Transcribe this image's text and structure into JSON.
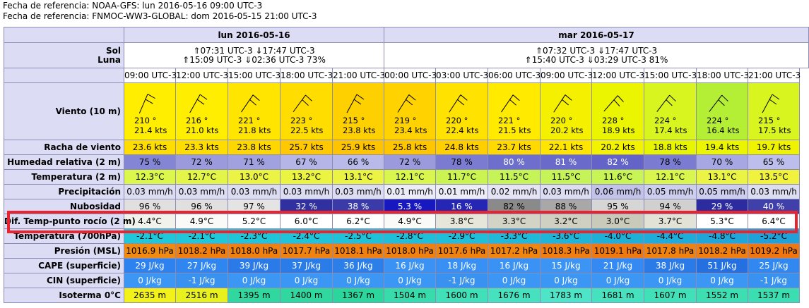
{
  "ref_lines": [
    "Fecha de referencia: NOAA-GFS: lun 2016-05-16 09:00 UTC-3",
    "Fecha de referencia: FNMOC-WW3-GLOBAL: dom 2016-05-15 21:00 UTC-3"
  ],
  "days": [
    {
      "label": "lun 2016-05-16",
      "span": 5,
      "sun": "⇑07:31 UTC-3 ⇓17:47 UTC-3",
      "moon": "⇑15:09 UTC-3 ⇓02:36 UTC-3  73%"
    },
    {
      "label": "mar 2016-05-17",
      "span": 9,
      "sun": "⇑07:32 UTC-3 ⇓17:47 UTC-3",
      "moon": "⇑15:40 UTC-3 ⇓03:29 UTC-3  81%"
    }
  ],
  "labels": {
    "sol": "Sol",
    "luna": "Luna"
  },
  "hours": [
    "09:00 UTC-3",
    "12:00 UTC-3",
    "15:00 UTC-3",
    "18:00 UTC-3",
    "21:00 UTC-3",
    "00:00 UTC-3",
    "03:00 UTC-3",
    "06:00 UTC-3",
    "09:00 UTC-3",
    "12:00 UTC-3",
    "15:00 UTC-3",
    "18:00 UTC-3",
    "21:00 UTC-3"
  ],
  "wind": {
    "label": "Viento (10 m)",
    "dirs": [
      "210 °",
      "216 °",
      "221 °",
      "223 °",
      "215 °",
      "219 °",
      "220 °",
      "221 °",
      "220 °",
      "228 °",
      "224 °",
      "224 °",
      "215 °"
    ],
    "speeds": [
      "21.4  kts",
      "21.0  kts",
      "21.8  kts",
      "22.5  kts",
      "23.8  kts",
      "23.4  kts",
      "22.4  kts",
      "21.5  kts",
      "20.2  kts",
      "18.9  kts",
      "17.4  kts",
      "16.4  kts",
      "17.5  kts"
    ],
    "colors": [
      "#ffee00",
      "#ffee00",
      "#ffe500",
      "#ffdd00",
      "#ffd000",
      "#ffd200",
      "#ffe200",
      "#ffea00",
      "#f5f000",
      "#ecf500",
      "#d8f520",
      "#b5ef35",
      "#d8f520"
    ]
  },
  "rows": [
    {
      "label": "Racha de viento",
      "values": [
        "23.6  kts",
        "23.3  kts",
        "23.8  kts",
        "25.7  kts",
        "25.9  kts",
        "25.8  kts",
        "24.8  kts",
        "23.7  kts",
        "22.1  kts",
        "20.2  kts",
        "18.8  kts",
        "19.4  kts",
        "19.7  kts"
      ],
      "colors": [
        "#ffdd00",
        "#ffdd00",
        "#ffd700",
        "#ffc800",
        "#ffc400",
        "#ffc600",
        "#ffcf00",
        "#ffd900",
        "#ffe500",
        "#f3f200",
        "#e7f500",
        "#ecf500",
        "#f0f300"
      ],
      "text": [
        "#000",
        "#000",
        "#000",
        "#000",
        "#000",
        "#000",
        "#000",
        "#000",
        "#000",
        "#000",
        "#000",
        "#000",
        "#000"
      ]
    },
    {
      "label": "Humedad relativa (2 m)",
      "values": [
        "75 %",
        "72 %",
        "71 %",
        "67 %",
        "66 %",
        "72 %",
        "78 %",
        "80 %",
        "81 %",
        "82 %",
        "78 %",
        "70 %",
        "65 %"
      ],
      "colors": [
        "#8585d6",
        "#9a9add",
        "#a1a1e0",
        "#b5b5e8",
        "#babaea",
        "#9a9add",
        "#7b7bd2",
        "#6e6ecc",
        "#6a6acb",
        "#6464c8",
        "#7b7bd2",
        "#a7a7e3",
        "#bebeec"
      ],
      "text": [
        "#000",
        "#000",
        "#000",
        "#000",
        "#000",
        "#000",
        "#000",
        "#fff",
        "#fff",
        "#fff",
        "#000",
        "#000",
        "#000"
      ]
    },
    {
      "label": "Temperatura (2 m)",
      "values": [
        "12.3°C",
        "12.7°C",
        "13.0°C",
        "13.2°C",
        "13.1°C",
        "12.1°C",
        "11.7°C",
        "11.5°C",
        "11.5°C",
        "11.6°C",
        "12.1°C",
        "13.1°C",
        "13.5°C"
      ],
      "colors": [
        "#dcf74c",
        "#e3f549",
        "#ebf444",
        "#ecf442",
        "#ebf444",
        "#d8f64e",
        "#cbf453",
        "#c6f357",
        "#c6f357",
        "#c8f455",
        "#d8f64e",
        "#ebf444",
        "#f0f23e"
      ],
      "text": [
        "#000",
        "#000",
        "#000",
        "#000",
        "#000",
        "#000",
        "#000",
        "#000",
        "#000",
        "#000",
        "#000",
        "#000",
        "#000"
      ]
    },
    {
      "label": "Precipitación",
      "values": [
        "0.03 mm/h",
        "0.03 mm/h",
        "0.03 mm/h",
        "0.03 mm/h",
        "0.03 mm/h",
        "0.01 mm/h",
        "0.01 mm/h",
        "0.02 mm/h",
        "0.03 mm/h",
        "0.06 mm/h",
        "0.05 mm/h",
        "0.05 mm/h",
        "0.03 mm/h"
      ],
      "colors": [
        "#ddddf2",
        "#ddddf2",
        "#ddddf2",
        "#ddddf2",
        "#ddddf2",
        "#ececf8",
        "#ececf8",
        "#e4e4f5",
        "#ddddf2",
        "#c3c3ea",
        "#cdcdee",
        "#cdcdee",
        "#ddddf2"
      ],
      "text": [
        "#000",
        "#000",
        "#000",
        "#000",
        "#000",
        "#000",
        "#000",
        "#000",
        "#000",
        "#000",
        "#000",
        "#000",
        "#000"
      ]
    },
    {
      "label": "Nubosidad",
      "values": [
        "96 %",
        "96 %",
        "97 %",
        "32 %",
        "38 %",
        "5.3 %",
        "16 %",
        "82 %",
        "88 %",
        "95 %",
        "94 %",
        "29 %",
        "40 %"
      ],
      "colors": [
        "#e0e0e0",
        "#e0e0e0",
        "#e4e4e4",
        "#3030a0",
        "#3a3aa8",
        "#1818c0",
        "#2626b4",
        "#8a8a8a",
        "#a8a8a8",
        "#d6d6d6",
        "#d0d0d0",
        "#2c2ca0",
        "#4040aa"
      ],
      "text": [
        "#000",
        "#000",
        "#000",
        "#fff",
        "#fff",
        "#fff",
        "#fff",
        "#000",
        "#000",
        "#000",
        "#000",
        "#fff",
        "#fff"
      ]
    },
    {
      "label": "Dif. Temp-punto rocío (2 m)",
      "values": [
        "4.4°C",
        "4.9°C",
        "5.2°C",
        "6.0°C",
        "6.2°C",
        "4.9°C",
        "3.8°C",
        "3.3°C",
        "3.2°C",
        "3.0°C",
        "3.7°C",
        "5.3°C",
        "6.4°C"
      ],
      "colors": [
        "#f2f2ec",
        "#fafaf8",
        "#ffffff",
        "#ffffff",
        "#ffffff",
        "#fafaf8",
        "#e6e6da",
        "#d4d4c6",
        "#d0d0c2",
        "#cacabb",
        "#e2e2d6",
        "#ffffff",
        "#ffffff"
      ],
      "text": [
        "#000",
        "#000",
        "#000",
        "#000",
        "#000",
        "#000",
        "#000",
        "#000",
        "#000",
        "#000",
        "#000",
        "#000",
        "#000"
      ]
    },
    {
      "label": "Temperatura (700hPa)",
      "values": [
        "-2.1°C",
        "-2.1°C",
        "-2.3°C",
        "-2.4°C",
        "-2.5°C",
        "-2.8°C",
        "-2.9°C",
        "-3.3°C",
        "-3.6°C",
        "-4.0°C",
        "-4.4°C",
        "-4.8°C",
        "-5.2°C"
      ],
      "colors": [
        "#1ec8d8",
        "#1ec8d8",
        "#1ec6d8",
        "#1ec4d8",
        "#1ec3d8",
        "#1ec0d8",
        "#1ebfd8",
        "#1ebad8",
        "#1eb6d8",
        "#1eb1d8",
        "#1eacd8",
        "#1ea7d8",
        "#1ea2d8"
      ],
      "text": [
        "#000",
        "#000",
        "#000",
        "#000",
        "#000",
        "#000",
        "#000",
        "#000",
        "#000",
        "#000",
        "#000",
        "#000",
        "#000"
      ]
    },
    {
      "label": "Presión (MSL)",
      "values": [
        "1016.9 hPa",
        "1018.2 hPa",
        "1018.0 hPa",
        "1017.7 hPa",
        "1018.1 hPa",
        "1018.0 hPa",
        "1017.6 hPa",
        "1017.2 hPa",
        "1018.3 hPa",
        "1019.1 hPa",
        "1017.8 hPa",
        "1018.2 hPa",
        "1019.2 hPa"
      ],
      "colors": [
        "#f08a10",
        "#f07f10",
        "#f08010",
        "#f08210",
        "#f08010",
        "#f08010",
        "#f08310",
        "#f08610",
        "#f07e10",
        "#f07810",
        "#f08210",
        "#f07f10",
        "#f07710"
      ],
      "text": [
        "#000",
        "#000",
        "#000",
        "#000",
        "#000",
        "#000",
        "#000",
        "#000",
        "#000",
        "#000",
        "#000",
        "#000",
        "#000"
      ]
    },
    {
      "label": "CAPE (superficie)",
      "values": [
        "29 J/kg",
        "27 J/kg",
        "39 J/kg",
        "37 J/kg",
        "36 J/kg",
        "16 J/kg",
        "18 J/kg",
        "16 J/kg",
        "15 J/kg",
        "21 J/kg",
        "38 J/kg",
        "51 J/kg",
        "25 J/kg"
      ],
      "colors": [
        "#2e82f0",
        "#3086f0",
        "#2a7ae8",
        "#2a7ce8",
        "#2c7ee8",
        "#3a92f4",
        "#3890f4",
        "#3a92f4",
        "#3c94f4",
        "#348af2",
        "#2a7be8",
        "#2470e0",
        "#3088f0"
      ],
      "text": [
        "#fff",
        "#fff",
        "#fff",
        "#fff",
        "#fff",
        "#fff",
        "#fff",
        "#fff",
        "#fff",
        "#fff",
        "#fff",
        "#fff",
        "#fff"
      ]
    },
    {
      "label": "CIN (superficie)",
      "values": [
        "0 J/kg",
        "-1 J/kg",
        "0 J/kg",
        "0 J/kg",
        "0 J/kg",
        "0 J/kg",
        "-1 J/kg",
        "0 J/kg",
        "0 J/kg",
        "0 J/kg",
        "0 J/kg",
        "0 J/kg",
        "-1 J/kg"
      ],
      "colors": [
        "#3c96f4",
        "#3a92f0",
        "#3c96f4",
        "#3c96f4",
        "#3c96f4",
        "#3c96f4",
        "#3a92f0",
        "#3c96f4",
        "#3c96f4",
        "#3c96f4",
        "#3c96f4",
        "#3c96f4",
        "#3a92f0"
      ],
      "text": [
        "#fff",
        "#fff",
        "#fff",
        "#fff",
        "#fff",
        "#fff",
        "#fff",
        "#fff",
        "#fff",
        "#fff",
        "#fff",
        "#fff",
        "#fff"
      ]
    },
    {
      "label": "Isoterma 0°C",
      "values": [
        "2635 m",
        "2516 m",
        "1395 m",
        "1400 m",
        "1367 m",
        "1504 m",
        "1600 m",
        "1676 m",
        "1783 m",
        "1681 m",
        "1607 m",
        "1552 m",
        "1537 m"
      ],
      "colors": [
        "#f2f21a",
        "#e8f01e",
        "#30d8a0",
        "#30d8a0",
        "#2ad69c",
        "#38dcac",
        "#40e0b8",
        "#46e2c0",
        "#4ee4c8",
        "#46e2c0",
        "#40e0b8",
        "#3cdeb2",
        "#3adeb0"
      ],
      "text": [
        "#000",
        "#000",
        "#000",
        "#000",
        "#000",
        "#000",
        "#000",
        "#000",
        "#000",
        "#000",
        "#000",
        "#000",
        "#000"
      ]
    }
  ]
}
